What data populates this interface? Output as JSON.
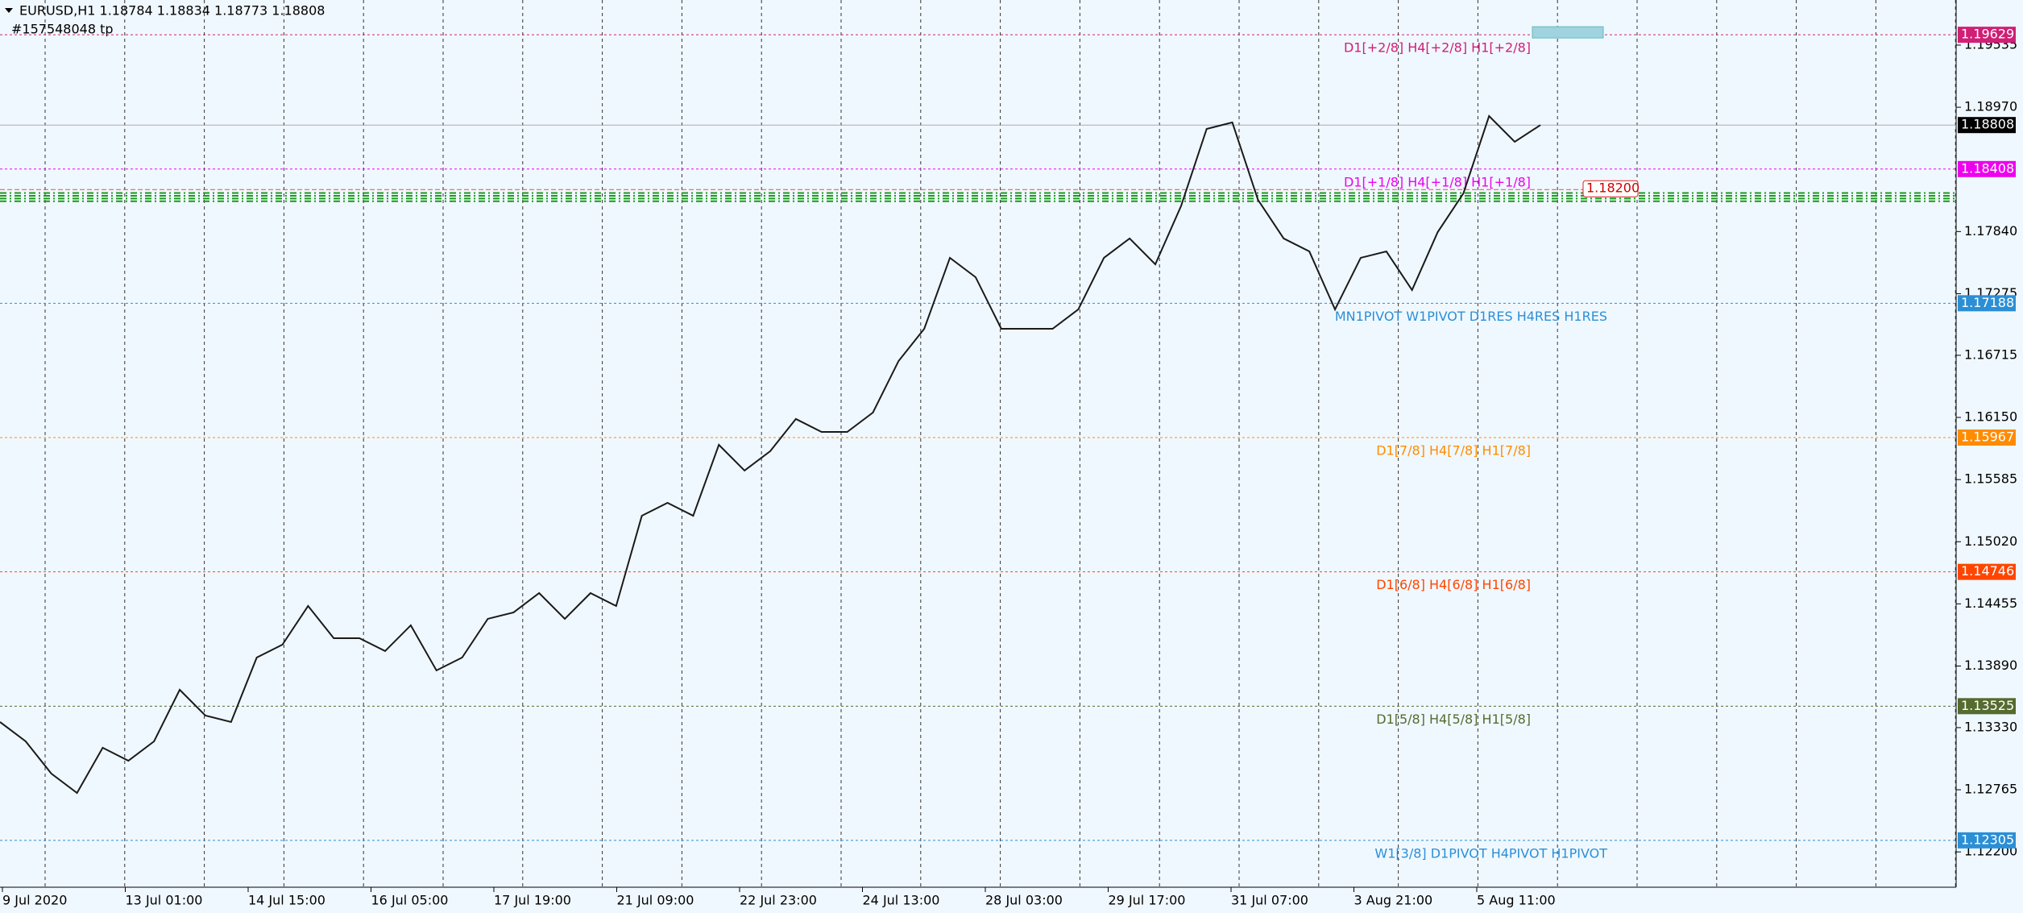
{
  "chart_data": {
    "type": "line",
    "title": "EURUSD,H1  1.18784 1.18834 1.18773 1.18808",
    "subtitle": "#157548048 tp",
    "x_labels": [
      "9 Jul 2020",
      "13 Jul 01:00",
      "14 Jul 15:00",
      "16 Jul 05:00",
      "17 Jul 19:00",
      "21 Jul 09:00",
      "22 Jul 23:00",
      "24 Jul 13:00",
      "28 Jul 03:00",
      "29 Jul 17:00",
      "31 Jul 07:00",
      "3 Aug 21:00",
      "5 Aug 11:00"
    ],
    "series": [
      {
        "color": "#1a1a1a",
        "values": [
          1.13381,
          1.13205,
          1.12912,
          1.12736,
          1.13147,
          1.13029,
          1.13205,
          1.13674,
          1.1344,
          1.13381,
          1.13967,
          1.14084,
          1.14436,
          1.14143,
          1.14143,
          1.14026,
          1.1426,
          1.1385,
          1.13967,
          1.14319,
          1.14377,
          1.14553,
          1.14319,
          1.14553,
          1.14436,
          1.15256,
          1.15374,
          1.15256,
          1.15901,
          1.15667,
          1.15843,
          1.16136,
          1.16018,
          1.16018,
          1.16194,
          1.16663,
          1.16956,
          1.17601,
          1.17425,
          1.16956,
          1.16956,
          1.16956,
          1.17132,
          1.17601,
          1.17777,
          1.17542,
          1.1807,
          1.18773,
          1.18832,
          1.18128,
          1.17777,
          1.17659,
          1.17132,
          1.17601,
          1.17659,
          1.17308,
          1.17835,
          1.18187,
          1.1889,
          1.18656,
          1.18808
        ]
      }
    ],
    "ylim": [
      1.11879,
      1.19945
    ],
    "yticks": [
      1.19535,
      {
        "value": 1.1897,
        "label": "1.18970"
      },
      {
        "value": 1.1784,
        "label": "1.17840"
      },
      1.17275,
      1.16715,
      {
        "value": 1.1615,
        "label": "1.16150"
      },
      1.15585,
      {
        "value": 1.1502,
        "label": "1.15020"
      },
      1.14455,
      {
        "value": 1.1389,
        "label": "1.13890"
      },
      {
        "value": 1.1333,
        "label": "1.13330"
      },
      1.12765,
      {
        "value": 1.122,
        "label": "1.12200"
      }
    ],
    "levels": [
      {
        "value": 1.19629,
        "label": "D1[+2/8] H4[+2/8] H1[+2/8]",
        "color": "#d01f74"
      },
      {
        "value": 1.18408,
        "label": "D1[+1/8] H4[+1/8] H1[+1/8]",
        "color": "#ee00ee"
      },
      {
        "value": 1.17188,
        "label": "MN1PIVOT W1PIVOT D1RES H4RES H1RES",
        "color": "#2b8fd6"
      },
      {
        "value": 1.15967,
        "label": "D1[7/8] H4[7/8] H1[7/8]",
        "color": "#ff8c00"
      },
      {
        "value": 1.14746,
        "label": "D1[6/8] H4[6/8] H1[6/8]",
        "color": "#ff4500"
      },
      {
        "value": 1.13525,
        "label": "D1[5/8] H4[5/8] H1[5/8]",
        "color": "#556b2f"
      },
      {
        "value": 1.12305,
        "label": "W1[3/8] D1PIVOT H4PIVOT H1PIVOT",
        "color": "#2b8fd6"
      }
    ],
    "current_price": {
      "value": 1.18808,
      "label": "1.18808"
    },
    "marker_price": {
      "value": 1.182,
      "label": "1.18200"
    },
    "order_lines": [
      1.1819,
      1.18165,
      1.1814,
      1.18115
    ]
  }
}
